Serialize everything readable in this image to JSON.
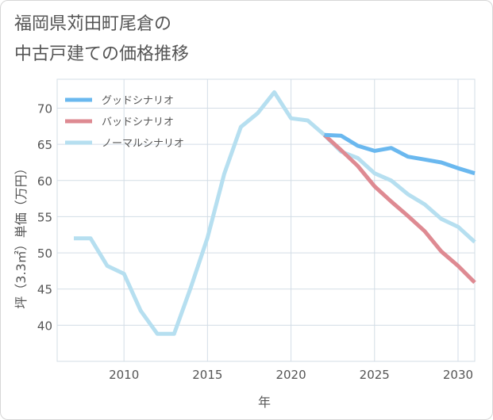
{
  "page": {
    "title_line1": "福岡県苅田町尾倉の",
    "title_line2": "中古戸建ての価格推移"
  },
  "chart_data": {
    "type": "line",
    "title": "福岡県苅田町尾倉の中古戸建ての価格推移",
    "xlabel": "年",
    "ylabel": "坪（3.3㎡）単価（万円）",
    "xlim": [
      2006,
      2031
    ],
    "ylim": [
      35,
      74
    ],
    "x_ticks": [
      2010,
      2015,
      2020,
      2025,
      2030
    ],
    "y_ticks": [
      40,
      45,
      50,
      55,
      60,
      65,
      70
    ],
    "grid": true,
    "legend_position": "top-left",
    "series": [
      {
        "name": "グッドシナリオ",
        "color": "#6ab8ef",
        "x": [
          2022,
          2023,
          2024,
          2025,
          2026,
          2027,
          2028,
          2029,
          2030,
          2031
        ],
        "values": [
          66.3,
          66.2,
          64.8,
          64.1,
          64.5,
          63.3,
          62.9,
          62.5,
          61.7,
          61.0
        ]
      },
      {
        "name": "バッドシナリオ",
        "color": "#de8a92",
        "x": [
          2022,
          2023,
          2024,
          2025,
          2026,
          2027,
          2028,
          2029,
          2030,
          2031
        ],
        "values": [
          66.3,
          64.2,
          62.0,
          59.2,
          57.1,
          55.1,
          53.0,
          50.2,
          48.2,
          45.9
        ]
      },
      {
        "name": "ノーマルシナリオ",
        "color": "#b6dff0",
        "x": [
          2007,
          2008,
          2009,
          2010,
          2011,
          2012,
          2013,
          2014,
          2015,
          2016,
          2017,
          2018,
          2019,
          2020,
          2021,
          2022,
          2023,
          2024,
          2025,
          2026,
          2027,
          2028,
          2029,
          2030,
          2031
        ],
        "values": [
          52.0,
          52.0,
          48.2,
          47.1,
          42.0,
          38.8,
          38.8,
          45.2,
          52.1,
          60.9,
          67.4,
          69.3,
          72.2,
          68.6,
          68.3,
          66.3,
          64.0,
          63.1,
          61.0,
          60.0,
          58.1,
          56.7,
          54.7,
          53.6,
          51.5
        ]
      }
    ]
  }
}
